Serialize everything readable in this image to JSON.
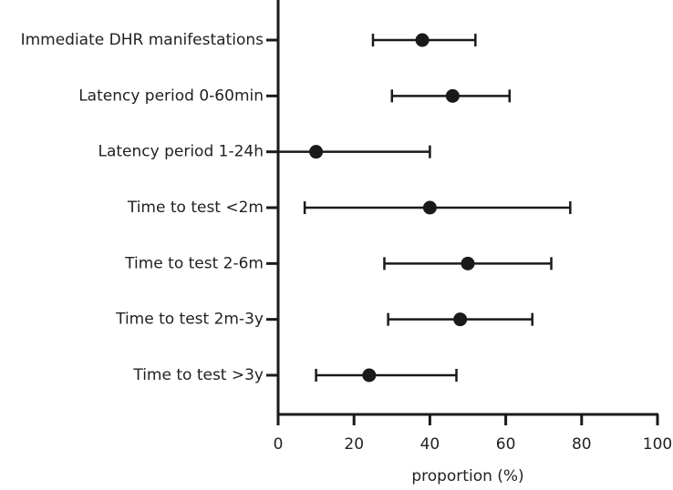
{
  "chart_data": {
    "type": "forest",
    "x_label": "proportion (%)",
    "categories": [
      "Immediate DHR manifestations",
      "Latency period 0-60min",
      "Latency period 1-24h",
      "Time to test <2m",
      "Time to test 2-6m",
      "Time to test 2m-3y",
      "Time to test >3y"
    ],
    "values": [
      38,
      46,
      10,
      40,
      50,
      48,
      24
    ],
    "lower": [
      25,
      30,
      0,
      7,
      28,
      29,
      10
    ],
    "upper": [
      52,
      61,
      40,
      77,
      72,
      67,
      47
    ],
    "color": "#1a1a1a",
    "xlim": [
      0,
      100
    ],
    "xticks": [
      0,
      20,
      40,
      60,
      80,
      100
    ]
  }
}
